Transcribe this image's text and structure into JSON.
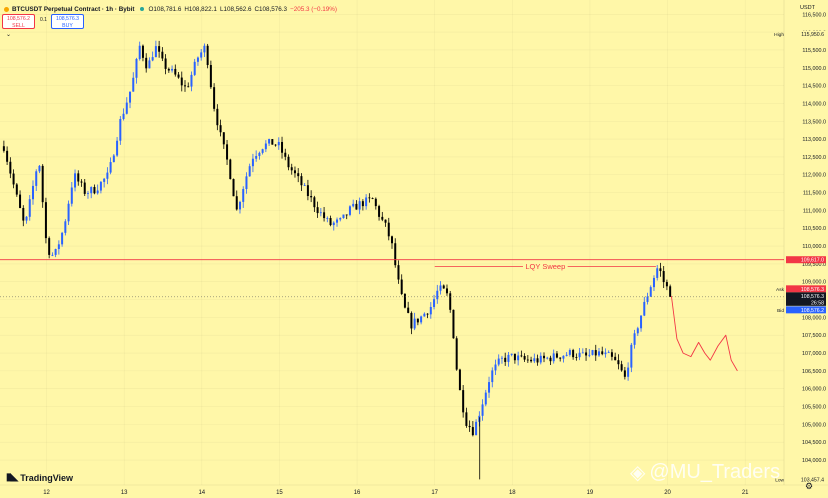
{
  "header": {
    "symbol": "BTCUSDT Perpetual Contract · 1h · Bybit",
    "open": "O108,781.6",
    "high": "H108,822.1",
    "low": "L108,562.6",
    "close": "C108,576.3",
    "change": "−205.3 (−0.19%)"
  },
  "trade": {
    "sell_price": "108,576.2",
    "sell_label": "SELL",
    "spread": "0.1",
    "buy_price": "108,576.3",
    "buy_label": "BUY"
  },
  "currency": "USDT",
  "branding": {
    "logo_text": "TradingView",
    "watermark": "@MU_Traders"
  },
  "colors": {
    "background": "#fff7a8",
    "up": "#2962ff",
    "down": "#000000",
    "resistance": "#f23645",
    "annotation": "#f23645"
  },
  "chart_data": {
    "type": "candlestick",
    "title": "BTCUSDT Perpetual Contract · 1h · Bybit",
    "xlabel": "",
    "ylabel": "",
    "ylim": [
      103300,
      116900
    ],
    "ytick_values": [
      104000,
      104500,
      105000,
      105500,
      106000,
      106500,
      107000,
      107500,
      108000,
      108500,
      109000,
      109500,
      110000,
      110500,
      111000,
      111500,
      112000,
      112500,
      113000,
      113500,
      114000,
      114500,
      115000,
      115500,
      116000,
      116500
    ],
    "ytick_labels": [
      "104,000.0",
      "104,500.0",
      "105,000.0",
      "105,500.0",
      "106,000.0",
      "106,500.0",
      "107,000.0",
      "107,500.0",
      "108,000.0",
      "108,500.0",
      "109,000.0",
      "109,500.0",
      "110,000.0",
      "110,500.0",
      "111,000.0",
      "111,500.0",
      "112,000.0",
      "112,500.0",
      "113,000.0",
      "113,500.0",
      "114,000.0",
      "114,500.0",
      "115,000.0",
      "115,500.0",
      "116,000.0",
      "116,500.0"
    ],
    "x_days": [
      11.4,
      21.5
    ],
    "xticks": [
      {
        "day": 12,
        "label": "12"
      },
      {
        "day": 13,
        "label": "13"
      },
      {
        "day": 14,
        "label": "14"
      },
      {
        "day": 15,
        "label": "15"
      },
      {
        "day": 16,
        "label": "16"
      },
      {
        "day": 17,
        "label": "17"
      },
      {
        "day": 18,
        "label": "18"
      },
      {
        "day": 19,
        "label": "19"
      },
      {
        "day": 20,
        "label": "20"
      },
      {
        "day": 21,
        "label": "21"
      }
    ],
    "anchors": [
      [
        11.45,
        112800
      ],
      [
        11.6,
        111500
      ],
      [
        11.72,
        110500
      ],
      [
        11.9,
        112500
      ],
      [
        12.0,
        110000
      ],
      [
        12.05,
        109800
      ],
      [
        12.1,
        109700
      ],
      [
        12.22,
        110500
      ],
      [
        12.35,
        112000
      ],
      [
        12.5,
        111500
      ],
      [
        12.63,
        111600
      ],
      [
        12.8,
        112000
      ],
      [
        12.95,
        113500
      ],
      [
        13.1,
        114500
      ],
      [
        13.2,
        115600
      ],
      [
        13.3,
        115000
      ],
      [
        13.4,
        115600
      ],
      [
        13.5,
        115100
      ],
      [
        13.65,
        114800
      ],
      [
        13.8,
        114400
      ],
      [
        13.95,
        115300
      ],
      [
        14.05,
        115600
      ],
      [
        14.15,
        114000
      ],
      [
        14.25,
        113000
      ],
      [
        14.35,
        112200
      ],
      [
        14.45,
        111000
      ],
      [
        14.55,
        111800
      ],
      [
        14.65,
        112500
      ],
      [
        14.78,
        112800
      ],
      [
        14.9,
        112900
      ],
      [
        15.0,
        112800
      ],
      [
        15.1,
        112300
      ],
      [
        15.2,
        112000
      ],
      [
        15.35,
        111500
      ],
      [
        15.5,
        111000
      ],
      [
        15.65,
        110600
      ],
      [
        15.8,
        110700
      ],
      [
        15.9,
        111000
      ],
      [
        16.05,
        111200
      ],
      [
        16.2,
        111300
      ],
      [
        16.3,
        110800
      ],
      [
        16.38,
        110500
      ],
      [
        16.45,
        110000
      ],
      [
        16.52,
        109100
      ],
      [
        16.6,
        108300
      ],
      [
        16.7,
        107800
      ],
      [
        16.82,
        108000
      ],
      [
        16.95,
        108300
      ],
      [
        17.05,
        108800
      ],
      [
        17.15,
        108700
      ],
      [
        17.22,
        108000
      ],
      [
        17.3,
        106200
      ],
      [
        17.4,
        105100
      ],
      [
        17.5,
        104800
      ],
      [
        17.6,
        105500
      ],
      [
        17.72,
        106400
      ],
      [
        17.85,
        106800
      ],
      [
        18.0,
        106900
      ],
      [
        18.15,
        106800
      ],
      [
        18.35,
        106800
      ],
      [
        18.55,
        106900
      ],
      [
        18.75,
        107000
      ],
      [
        18.95,
        106900
      ],
      [
        19.1,
        107000
      ],
      [
        19.25,
        106900
      ],
      [
        19.35,
        106700
      ],
      [
        19.45,
        106300
      ],
      [
        19.52,
        107000
      ],
      [
        19.62,
        107800
      ],
      [
        19.72,
        108500
      ],
      [
        19.8,
        109000
      ],
      [
        19.88,
        109450
      ],
      [
        19.95,
        109000
      ],
      [
        20.0,
        108800
      ],
      [
        20.05,
        108576
      ]
    ],
    "last_price": 108576.3,
    "resistance": {
      "value": 109617.0,
      "label": "109,617.0"
    },
    "annotation": {
      "text": "LQY Sweep",
      "y": 109430,
      "x_start": 17.0,
      "x_end": 19.85
    },
    "price_labels": [
      {
        "tag": "High",
        "value": 115950.6,
        "text": "115,950.6"
      },
      {
        "tag": "Ask",
        "value": 108576.3,
        "text": "108,576.3"
      },
      {
        "tag": "",
        "value": 108576.3,
        "text": "108,576.3"
      },
      {
        "tag": "",
        "value": 108576.3,
        "text": "26:58"
      },
      {
        "tag": "Bid",
        "value": 108576.2,
        "text": "108,576.2"
      },
      {
        "tag": "Low",
        "value": 103457.4,
        "text": "103,457.4"
      }
    ],
    "projection": [
      [
        20.05,
        108600
      ],
      [
        20.12,
        107400
      ],
      [
        20.2,
        107000
      ],
      [
        20.3,
        106900
      ],
      [
        20.4,
        107300
      ],
      [
        20.48,
        107000
      ],
      [
        20.55,
        106800
      ],
      [
        20.65,
        107200
      ],
      [
        20.75,
        107500
      ],
      [
        20.82,
        106800
      ],
      [
        20.9,
        106500
      ]
    ]
  }
}
